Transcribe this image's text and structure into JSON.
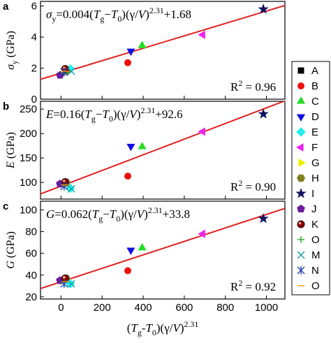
{
  "chart_data": [
    {
      "type": "scatter",
      "panel_label": "a",
      "title": [
        {
          "text": "σ",
          "style": "it"
        },
        {
          "text": "y",
          "style": "sub"
        },
        {
          "text": "=0.004("
        },
        {
          "text": "T",
          "style": "it"
        },
        {
          "text": "g",
          "style": "sub"
        },
        {
          "text": "−"
        },
        {
          "text": "T",
          "style": "it"
        },
        {
          "text": "0",
          "style": "sub"
        },
        {
          "text": ")(γ/"
        },
        {
          "text": "V",
          "style": "it"
        },
        {
          "text": ")"
        },
        {
          "text": "2.31",
          "style": "sup"
        },
        {
          "text": "+1.68"
        }
      ],
      "annotation": [
        {
          "text": "R"
        },
        {
          "text": "2",
          "style": "sup"
        },
        {
          "text": " = 0.96"
        }
      ],
      "ylabel": [
        {
          "text": "σ",
          "style": "it"
        },
        {
          "text": "y",
          "style": "sub"
        },
        {
          "text": " (GPa)"
        }
      ],
      "fit": {
        "slope": 0.004,
        "intercept": 1.68,
        "color": "#e02020"
      },
      "xlim": [
        -100,
        1090
      ],
      "xticks": [
        0,
        200,
        400,
        600,
        800,
        1000
      ],
      "ylim": [
        0,
        6.3
      ],
      "yticks": [
        0,
        2,
        4,
        6
      ],
      "x": [
        25,
        325,
        395,
        340,
        45,
        690,
        20,
        25,
        985,
        -5,
        20,
        15,
        50,
        15,
        20
      ],
      "y": [
        1.9,
        2.35,
        3.45,
        3.1,
        1.95,
        4.15,
        1.85,
        1.8,
        5.8,
        1.55,
        1.95,
        1.7,
        1.8,
        1.75,
        1.8
      ]
    },
    {
      "type": "scatter",
      "panel_label": "b",
      "title": [
        {
          "text": "E",
          "style": "it"
        },
        {
          "text": "=0.16("
        },
        {
          "text": "T",
          "style": "it"
        },
        {
          "text": "g",
          "style": "sub"
        },
        {
          "text": "−"
        },
        {
          "text": "T",
          "style": "it"
        },
        {
          "text": "0",
          "style": "sub"
        },
        {
          "text": ")(γ/"
        },
        {
          "text": "V",
          "style": "it"
        },
        {
          "text": ")"
        },
        {
          "text": "2.31",
          "style": "sup"
        },
        {
          "text": "+92.6"
        }
      ],
      "annotation": [
        {
          "text": "R"
        },
        {
          "text": "2",
          "style": "sup"
        },
        {
          "text": " = 0.90"
        }
      ],
      "ylabel": [
        {
          "text": "E",
          "style": "it"
        },
        {
          "text": " (GPa)"
        }
      ],
      "fit": {
        "slope": 0.16,
        "intercept": 92.6,
        "color": "#e02020"
      },
      "xlim": [
        -100,
        1090
      ],
      "xticks": [
        0,
        200,
        400,
        600,
        800,
        1000
      ],
      "ylim": [
        66,
        266
      ],
      "yticks": [
        100,
        150,
        200,
        250
      ],
      "x": [
        25,
        325,
        395,
        340,
        45,
        690,
        20,
        25,
        985,
        -5,
        20,
        15,
        50,
        15,
        20
      ],
      "y": [
        98,
        113,
        173,
        174,
        88,
        204,
        97,
        100,
        240,
        97,
        101,
        95,
        87,
        92,
        95
      ]
    },
    {
      "type": "scatter",
      "panel_label": "c",
      "title": [
        {
          "text": "G",
          "style": "it"
        },
        {
          "text": "=0.062("
        },
        {
          "text": "T",
          "style": "it"
        },
        {
          "text": "g",
          "style": "sub"
        },
        {
          "text": "−"
        },
        {
          "text": "T",
          "style": "it"
        },
        {
          "text": "0",
          "style": "sub"
        },
        {
          "text": ")(γ/"
        },
        {
          "text": "V",
          "style": "it"
        },
        {
          "text": ")"
        },
        {
          "text": "2.31",
          "style": "sup"
        },
        {
          "text": "+33.8"
        }
      ],
      "annotation": [
        {
          "text": "R"
        },
        {
          "text": "2",
          "style": "sup"
        },
        {
          "text": " = 0.92"
        }
      ],
      "ylabel": [
        {
          "text": "G",
          "style": "it"
        },
        {
          "text": " (GPa)"
        }
      ],
      "fit": {
        "slope": 0.062,
        "intercept": 33.8,
        "color": "#e02020"
      },
      "xlim": [
        -100,
        1090
      ],
      "xticks": [
        0,
        200,
        400,
        600,
        800,
        1000
      ],
      "ylim": [
        18,
        108
      ],
      "yticks": [
        20,
        40,
        60,
        80,
        100
      ],
      "xlabel": [
        {
          "text": "("
        },
        {
          "text": "T",
          "style": "it"
        },
        {
          "text": "g",
          "style": "sub"
        },
        {
          "text": "-"
        },
        {
          "text": "T",
          "style": "it"
        },
        {
          "text": "0",
          "style": "sub"
        },
        {
          "text": ")(γ/"
        },
        {
          "text": "V",
          "style": "it"
        },
        {
          "text": ")"
        },
        {
          "text": "2.31",
          "style": "sup"
        }
      ],
      "x": [
        25,
        325,
        395,
        340,
        45,
        690,
        20,
        25,
        985,
        -5,
        20,
        15,
        50,
        15,
        20
      ],
      "y": [
        36,
        44,
        65,
        63,
        32,
        78,
        36,
        37,
        92,
        35,
        37,
        33,
        32,
        32,
        34
      ]
    }
  ],
  "legend": [
    {
      "name": "A",
      "color": "#000000",
      "marker": "square"
    },
    {
      "name": "B",
      "color": "#ee1111",
      "marker": "circle"
    },
    {
      "name": "C",
      "color": "#22dd22",
      "marker": "tri-up"
    },
    {
      "name": "D",
      "color": "#1010e0",
      "marker": "tri-down"
    },
    {
      "name": "E",
      "color": "#22eeee",
      "marker": "diamond"
    },
    {
      "name": "F",
      "color": "#ee22ee",
      "marker": "tri-left"
    },
    {
      "name": "G",
      "color": "#eeee00",
      "marker": "tri-right"
    },
    {
      "name": "H",
      "color": "#808020",
      "marker": "hexagon"
    },
    {
      "name": "I",
      "color": "#101060",
      "marker": "star"
    },
    {
      "name": "J",
      "color": "#6a1b9a",
      "marker": "pentagon"
    },
    {
      "name": "K",
      "color": "#8b0000",
      "marker": "sphere"
    },
    {
      "name": "O",
      "color": "#22aa22",
      "marker": "plus"
    },
    {
      "name": "M",
      "color": "#1aa0a0",
      "marker": "cross"
    },
    {
      "name": "N",
      "color": "#2040b0",
      "marker": "asterisk"
    },
    {
      "name": "O",
      "color": "#ff9900",
      "marker": "dash"
    }
  ]
}
